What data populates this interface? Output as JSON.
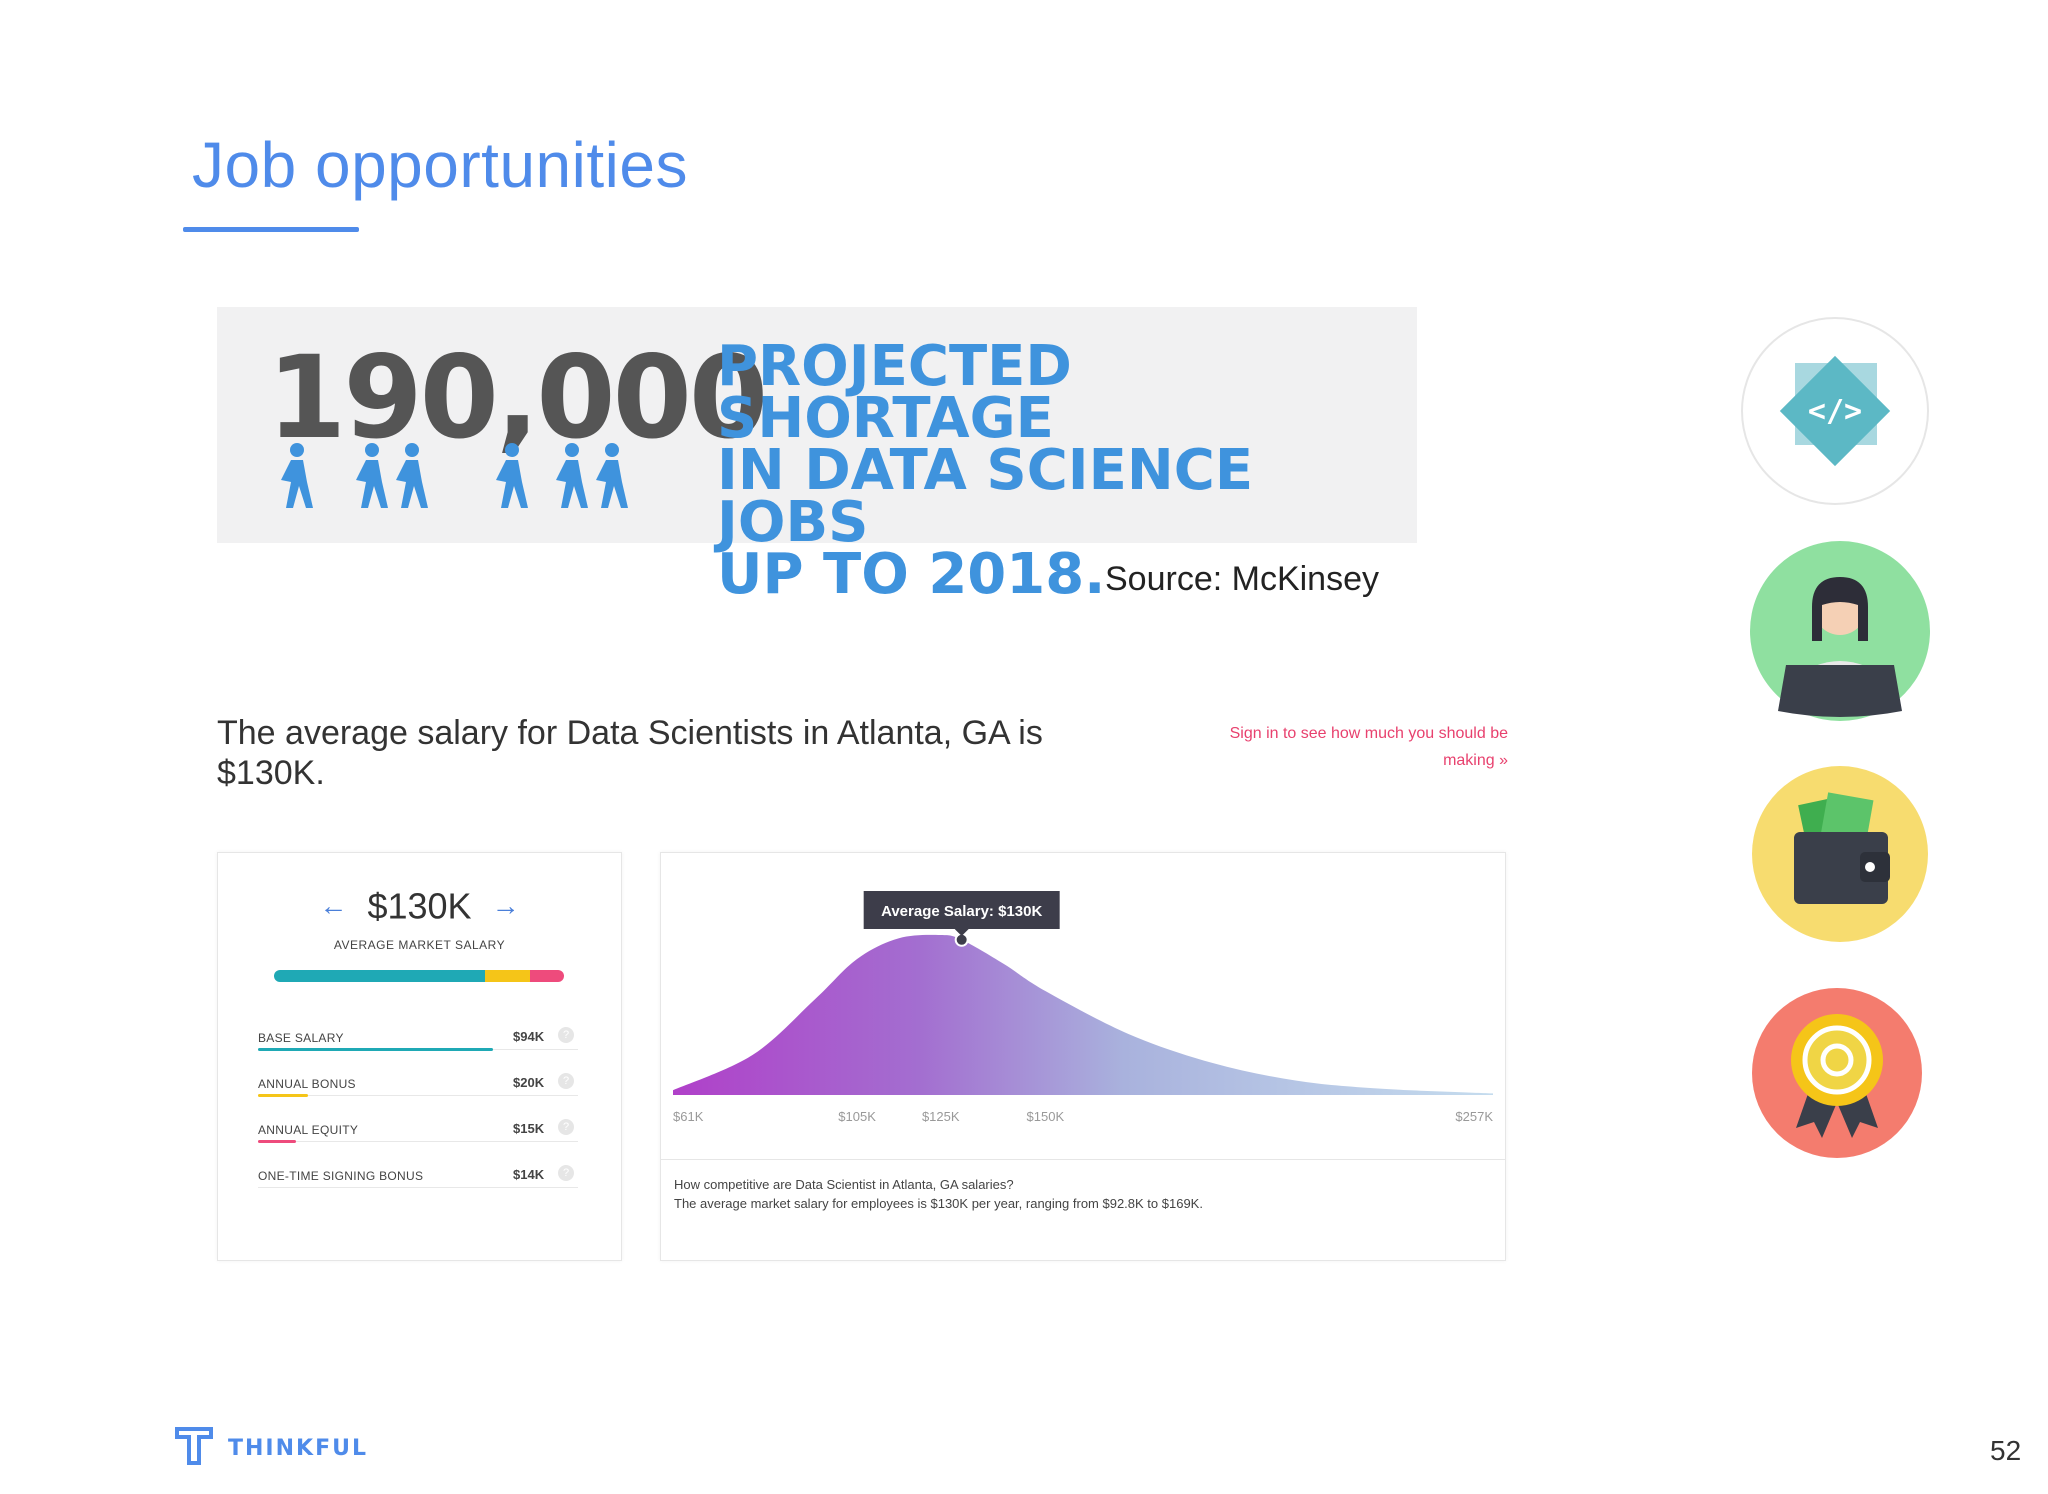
{
  "slide": {
    "title": "Job opportunities",
    "page_number": "52",
    "brand": "THINKFUL"
  },
  "banner": {
    "number": "190,000",
    "line1": "PROJECTED SHORTAGE",
    "line2": "IN DATA SCIENCE JOBS",
    "line3": "UP TO 2018.",
    "source": "Source: McKinsey"
  },
  "salary": {
    "headline": "The average salary for Data Scientists in Atlanta, GA is $130K.",
    "signin_line1": "Sign in to see how much you should be",
    "signin_line2": "making »",
    "main_value": "$130K",
    "main_label": "AVERAGE MARKET SALARY",
    "components": [
      {
        "label": "BASE SALARY",
        "value": "$94K",
        "color": "#1fa9b5",
        "amount": 94
      },
      {
        "label": "ANNUAL BONUS",
        "value": "$20K",
        "color": "#f5c518",
        "amount": 20
      },
      {
        "label": "ANNUAL EQUITY",
        "value": "$15K",
        "color": "#ee4b7c",
        "amount": 15
      },
      {
        "label": "ONE-TIME SIGNING BONUS",
        "value": "$14K",
        "color": "#bbbbbb",
        "amount": 14
      }
    ],
    "caption_question": "How competitive are Data Scientist in Atlanta, GA salaries?",
    "caption_answer": "The average market salary for employees is $130K per year, ranging from $92.8K to $169K."
  },
  "chart_data": {
    "type": "area",
    "tooltip": "Average Salary: $130K",
    "tick_labels": [
      "$61K",
      "$105K",
      "$125K",
      "$150K",
      "$257K"
    ],
    "x": [
      61,
      80,
      95,
      105,
      115,
      125,
      130,
      140,
      150,
      170,
      190,
      210,
      230,
      257
    ],
    "y": [
      0.03,
      0.25,
      0.6,
      0.85,
      0.98,
      1.0,
      0.97,
      0.82,
      0.65,
      0.38,
      0.2,
      0.09,
      0.04,
      0.01
    ],
    "xlim": [
      61,
      257
    ],
    "highlight_x": 130,
    "colors": {
      "left": "#b040c9",
      "right": "#c5dcee",
      "tooltip_bg": "#3d3d4a"
    }
  },
  "icons": [
    {
      "name": "code-diamond-icon",
      "glyph": "</>",
      "color": "#5cb8c5"
    },
    {
      "name": "person-laptop-icon",
      "color": "#8fe0a0"
    },
    {
      "name": "wallet-icon",
      "color": "#f7dc6f"
    },
    {
      "name": "award-badge-icon",
      "color": "#f47c6e"
    }
  ]
}
